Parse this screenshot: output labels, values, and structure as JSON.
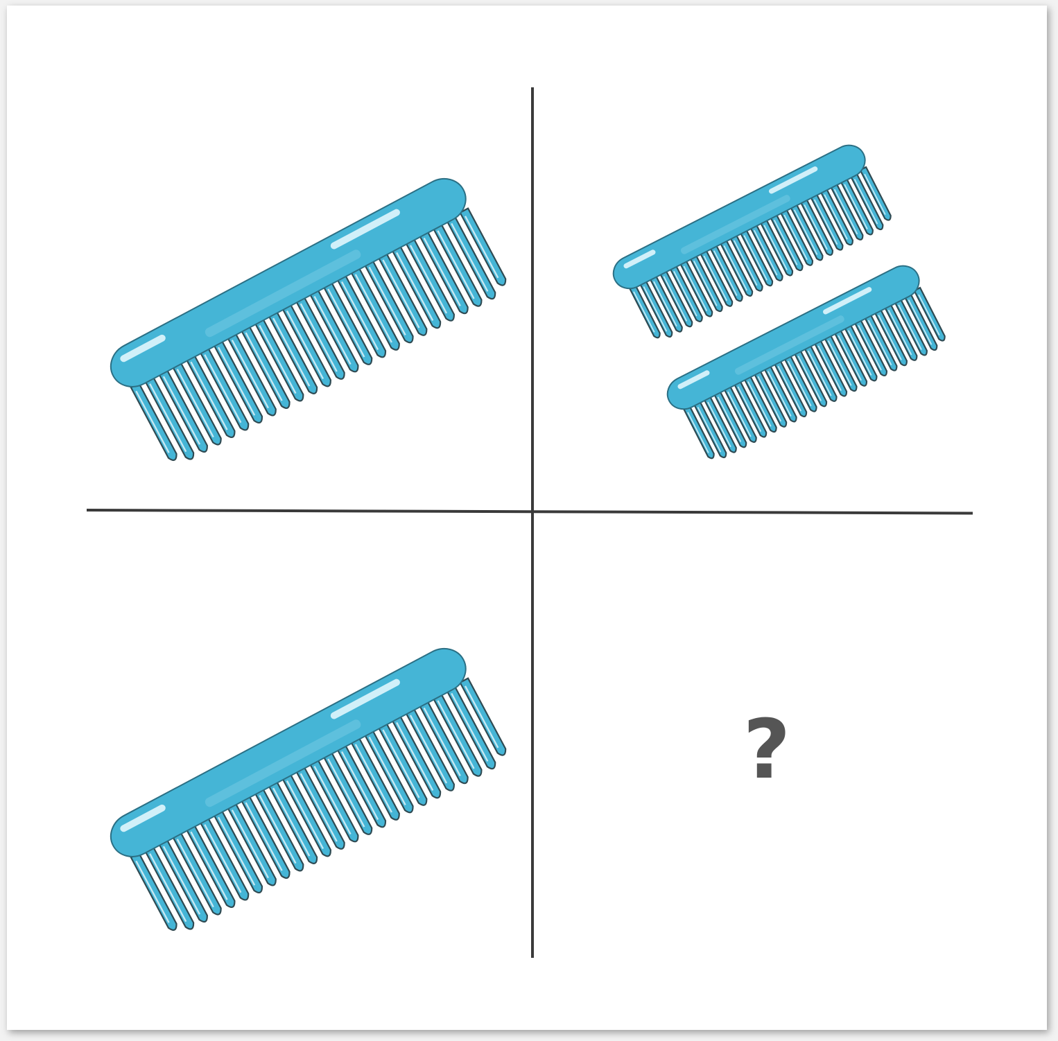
{
  "puzzle": {
    "question_mark": "?",
    "comb_color": "#45b5d6",
    "comb_highlight": "#d9f3fb",
    "tooth_outline": "#2f4a52",
    "question_color": "#555555",
    "cells": [
      {
        "position": "top-left",
        "comb_count": 1
      },
      {
        "position": "top-right",
        "comb_count": 2
      },
      {
        "position": "bottom-left",
        "comb_count": 1
      },
      {
        "position": "bottom-right",
        "comb_count": 0,
        "content": "?"
      }
    ]
  }
}
